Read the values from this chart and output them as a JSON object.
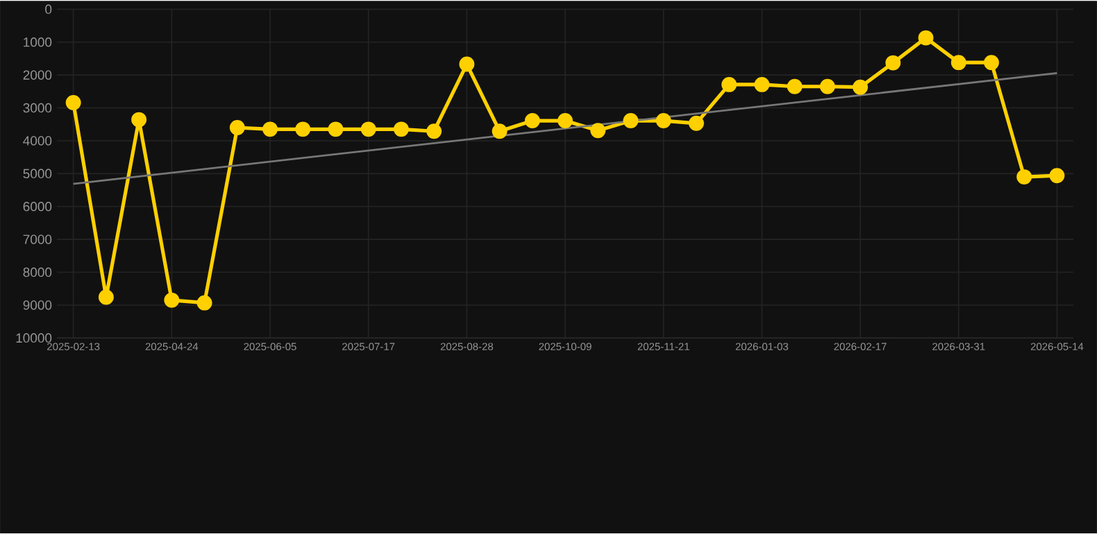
{
  "chart_data": {
    "type": "line",
    "categories": [
      "2025-02-13",
      null,
      null,
      "2025-04-24",
      null,
      null,
      "2025-06-05",
      null,
      null,
      "2025-07-17",
      null,
      null,
      "2025-08-28",
      null,
      null,
      "2025-10-09",
      null,
      null,
      "2025-11-21",
      null,
      null,
      "2026-01-03",
      null,
      null,
      "2026-02-17",
      null,
      null,
      "2026-03-31",
      null,
      null,
      "2026-05-14"
    ],
    "series": [
      {
        "color": "#ffd000",
        "marker": "circle",
        "values": [
          2840,
          8760,
          3360,
          8850,
          8930,
          3600,
          3650,
          3650,
          3650,
          3650,
          3650,
          3710,
          1670,
          3710,
          3390,
          3390,
          3690,
          3390,
          3390,
          3470,
          2290,
          2290,
          2350,
          2350,
          2370,
          1630,
          870,
          1620,
          1620,
          5100,
          5060
        ]
      },
      {
        "type": "line",
        "color": "#777777",
        "marker": "none",
        "values": [
          5310,
          null,
          null,
          null,
          null,
          null,
          null,
          null,
          null,
          null,
          null,
          null,
          null,
          null,
          null,
          null,
          null,
          null,
          null,
          null,
          null,
          null,
          null,
          null,
          null,
          null,
          null,
          null,
          null,
          null,
          1940
        ]
      }
    ],
    "ylim": [
      10000,
      0
    ],
    "yticks": [
      0,
      1000,
      2000,
      3000,
      4000,
      5000,
      6000,
      7000,
      8000,
      9000,
      10000
    ],
    "grid": true
  }
}
